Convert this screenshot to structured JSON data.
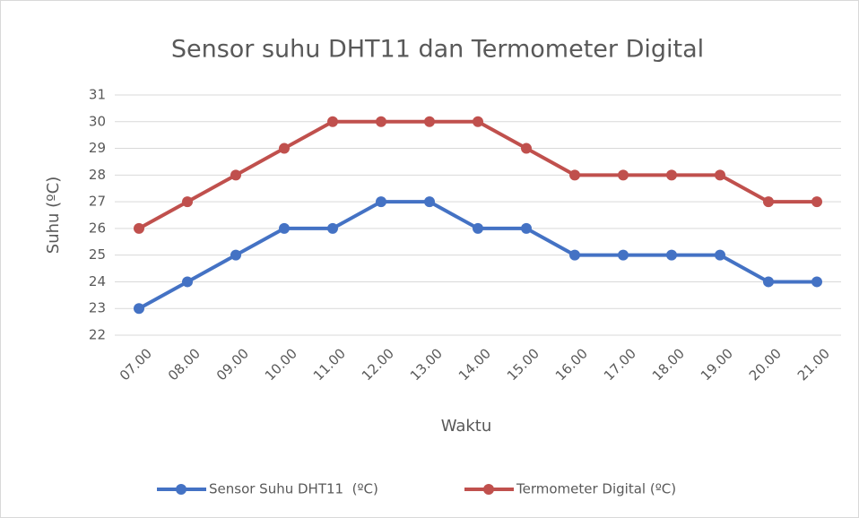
{
  "chart_data": {
    "type": "line",
    "title": "Sensor suhu DHT11 dan Termometer Digital",
    "x_label": "Waktu",
    "y_label": "Suhu (ºC)",
    "categories": [
      "07.00",
      "08.00",
      "09.00",
      "10.00",
      "11.00",
      "12.00",
      "13.00",
      "14.00",
      "15.00",
      "16.00",
      "17.00",
      "18.00",
      "19.00",
      "20.00",
      "21.00"
    ],
    "series": [
      {
        "name": "Sensor Suhu DHT11  (ºC)",
        "color": "#4472c4",
        "values": [
          23,
          24,
          25,
          26,
          26,
          27,
          27,
          26,
          26,
          25,
          25,
          25,
          25,
          24,
          24
        ]
      },
      {
        "name": "Termometer Digital (ºC)",
        "color": "#c0504d",
        "values": [
          26,
          27,
          28,
          29,
          30,
          30,
          30,
          30,
          29,
          28,
          28,
          28,
          28,
          27,
          27
        ]
      }
    ],
    "ylim": [
      22,
      31
    ],
    "yticks": [
      22,
      23,
      24,
      25,
      26,
      27,
      28,
      29,
      30,
      31
    ],
    "grid": true,
    "legend": "bottom"
  }
}
